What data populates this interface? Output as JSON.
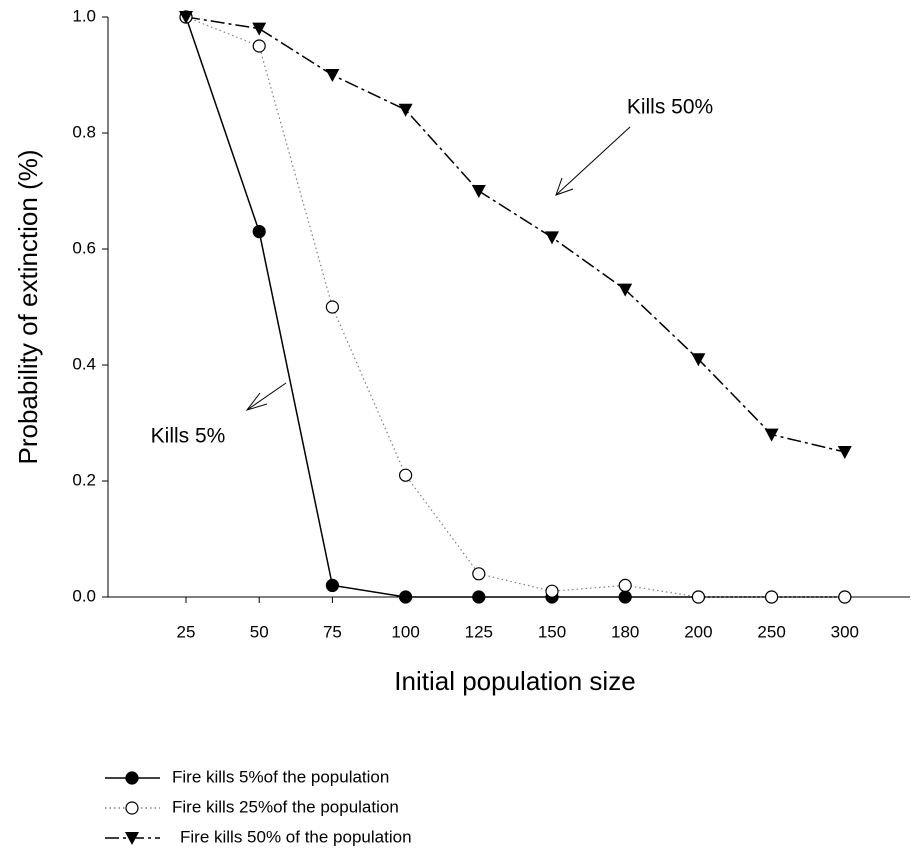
{
  "chart_data": {
    "type": "line",
    "x_label": "Initial population size",
    "y_label": "Probability of extinction (%)",
    "categories": [
      "25",
      "50",
      "75",
      "100",
      "125",
      "150",
      "180",
      "200",
      "250",
      "300"
    ],
    "ylim": [
      0,
      1
    ],
    "yticks": [
      {
        "value": 0,
        "label": "0.0"
      },
      0.2,
      0.4,
      0.6,
      0.8,
      {
        "value": 1,
        "label": "1.0"
      }
    ],
    "series": [
      {
        "name": "Fire kills 5%of the population",
        "color": "#000000",
        "dash": "solid",
        "marker": "circle",
        "values": [
          1.0,
          0.63,
          0.02,
          0,
          0,
          0,
          0,
          0,
          0,
          0
        ]
      },
      {
        "name": "Fire kills 25%of the population",
        "color": "#808080",
        "dash": "dotted",
        "marker": "open-circle",
        "values": [
          1.0,
          0.95,
          0.5,
          0.21,
          0.04,
          0.01,
          0.02,
          0,
          0,
          0
        ]
      },
      {
        "name": "Fire kills 50% of the population",
        "color": "#000000",
        "dash": "dashdot",
        "marker": "triangle-down",
        "values": [
          1.0,
          0.98,
          0.9,
          0.84,
          0.7,
          0.62,
          0.53,
          0.41,
          0.28,
          0.25
        ]
      }
    ],
    "annotations": [
      "Kills 50%",
      "Kills 5%"
    ]
  }
}
